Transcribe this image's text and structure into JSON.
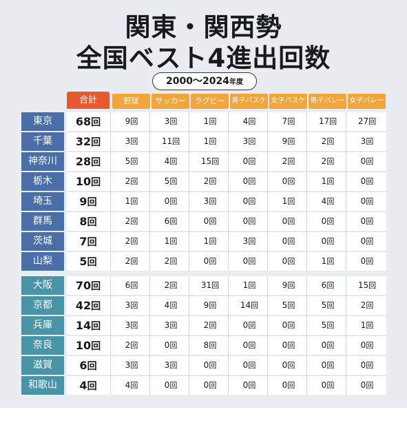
{
  "title_line1": "関東・関西勢",
  "title_line2": "全国ベスト4進出回数",
  "period": "2000～2024",
  "period_unit": "年度",
  "unit": "回",
  "headers": {
    "total": "合計",
    "sports": [
      "野球",
      "サッカー",
      "ラグビー",
      "男子バスケ",
      "女子バスケ",
      "男子バレー",
      "女子バレー"
    ]
  },
  "colors": {
    "total_header": "#e8592f",
    "sport_header": "#f2a53a",
    "kanto": "#4a6ea8",
    "kansai": "#4a94a8",
    "background": "#e9ecf1"
  },
  "chart_data": {
    "type": "table",
    "columns": [
      "合計",
      "野球",
      "サッカー",
      "ラグビー",
      "男子バスケ",
      "女子バスケ",
      "男子バレー",
      "女子バレー"
    ],
    "groups": [
      {
        "rows": [
          {
            "pref": "東京",
            "total": 68,
            "values": [
              9,
              3,
              1,
              4,
              7,
              17,
              27
            ]
          },
          {
            "pref": "千葉",
            "total": 32,
            "values": [
              3,
              11,
              1,
              3,
              9,
              2,
              3
            ]
          },
          {
            "pref": "神奈川",
            "total": 28,
            "values": [
              5,
              4,
              15,
              0,
              2,
              2,
              0
            ]
          },
          {
            "pref": "栃木",
            "total": 10,
            "values": [
              2,
              5,
              2,
              0,
              0,
              1,
              0
            ]
          },
          {
            "pref": "埼玉",
            "total": 9,
            "values": [
              1,
              0,
              3,
              0,
              1,
              4,
              0
            ]
          },
          {
            "pref": "群馬",
            "total": 8,
            "values": [
              2,
              6,
              0,
              0,
              0,
              0,
              0
            ]
          },
          {
            "pref": "茨城",
            "total": 7,
            "values": [
              2,
              1,
              1,
              3,
              0,
              0,
              0
            ]
          },
          {
            "pref": "山梨",
            "total": 5,
            "values": [
              2,
              2,
              0,
              0,
              0,
              1,
              0
            ]
          }
        ]
      },
      {
        "rows": [
          {
            "pref": "大阪",
            "total": 70,
            "values": [
              6,
              2,
              31,
              1,
              9,
              6,
              15
            ]
          },
          {
            "pref": "京都",
            "total": 42,
            "values": [
              3,
              4,
              9,
              14,
              5,
              5,
              2
            ]
          },
          {
            "pref": "兵庫",
            "total": 14,
            "values": [
              3,
              3,
              2,
              0,
              0,
              5,
              1
            ]
          },
          {
            "pref": "奈良",
            "total": 10,
            "values": [
              2,
              0,
              8,
              0,
              0,
              0,
              0
            ]
          },
          {
            "pref": "滋賀",
            "total": 6,
            "values": [
              3,
              3,
              0,
              0,
              0,
              0,
              0
            ]
          },
          {
            "pref": "和歌山",
            "total": 4,
            "values": [
              4,
              0,
              0,
              0,
              0,
              0,
              0
            ]
          }
        ]
      }
    ]
  }
}
